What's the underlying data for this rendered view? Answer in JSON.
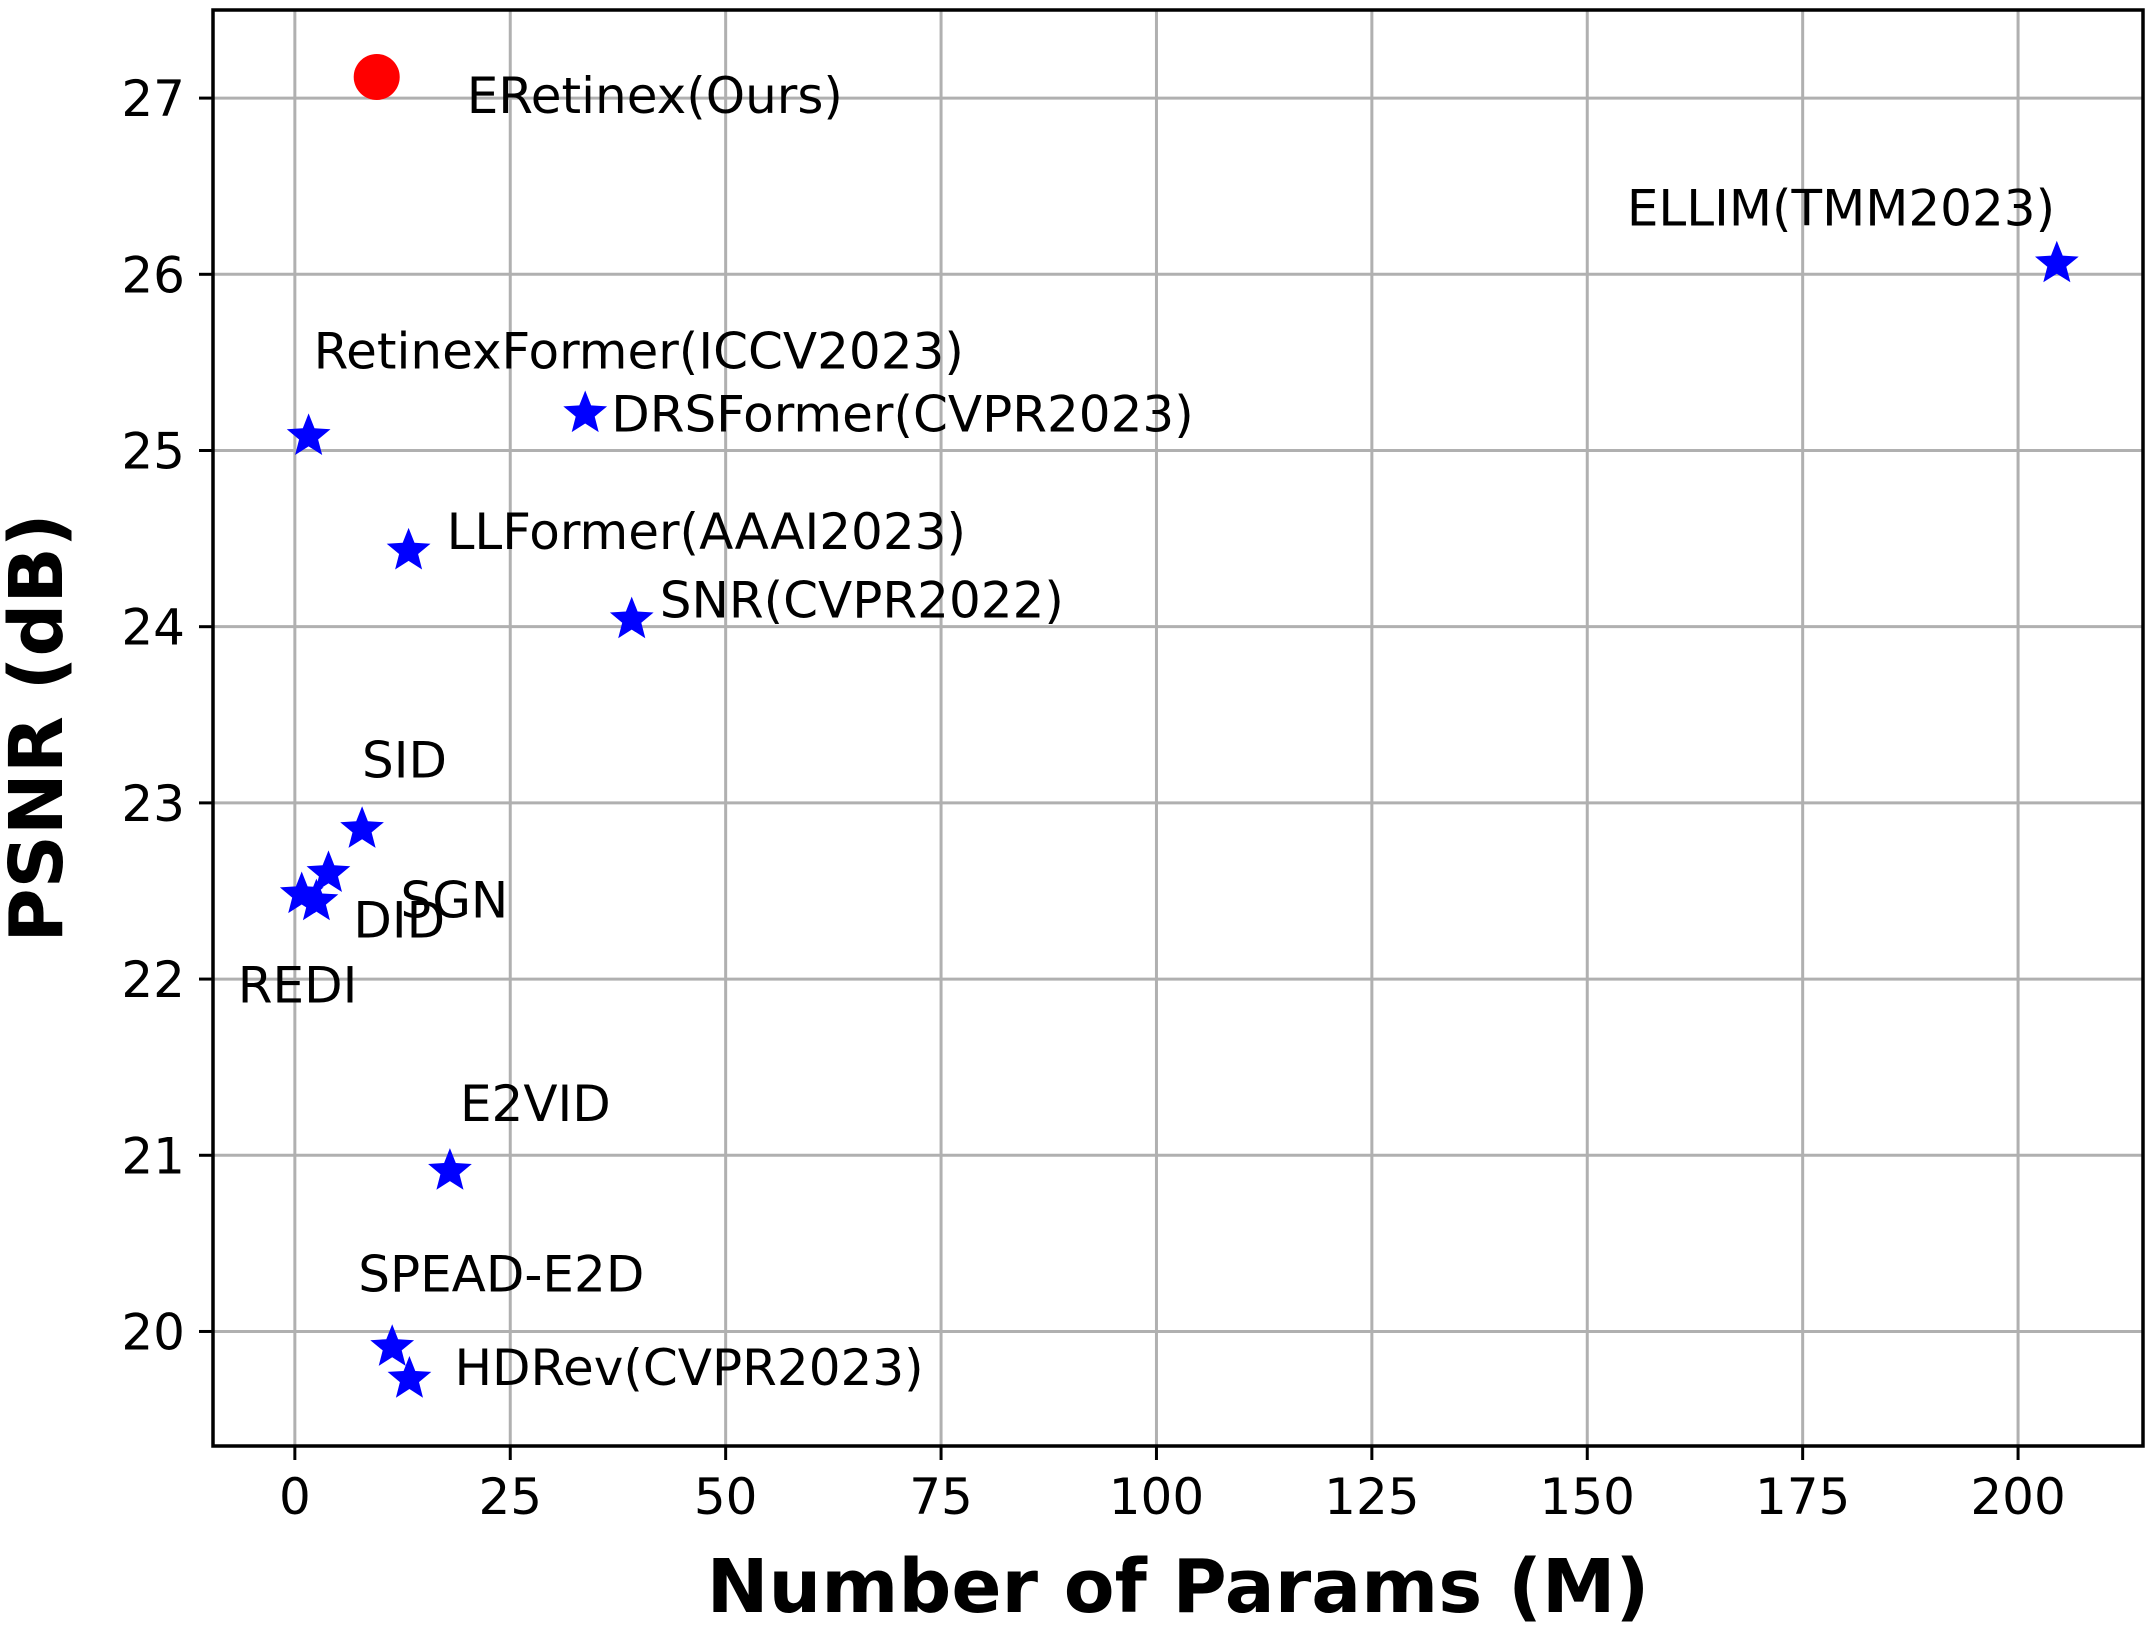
{
  "chart_data": {
    "type": "scatter",
    "title": "",
    "xlabel": "Number of Params (M)",
    "ylabel": "PSNR (dB)",
    "xlim": [
      -9.5,
      214.5
    ],
    "ylim": [
      19.35,
      27.5
    ],
    "xticks": [
      0,
      25,
      50,
      75,
      100,
      125,
      150,
      175,
      200
    ],
    "yticks": [
      20,
      21,
      22,
      23,
      24,
      25,
      26,
      27
    ],
    "grid": true,
    "legend": "none",
    "colors": {
      "ours": "#ff0000",
      "others": "#0000ff",
      "grid": "#b0b0b0"
    },
    "points": [
      {
        "label": "ERetinex(Ours)",
        "x": 9.5,
        "y": 27.12,
        "marker": "circle",
        "color": "#ff0000"
      },
      {
        "label": "ELLIM(TMM2023)",
        "x": 204.5,
        "y": 26.06,
        "marker": "star",
        "color": "#0000ff"
      },
      {
        "label": "RetinexFormer(ICCV2023)",
        "x": 1.6,
        "y": 25.08,
        "marker": "star",
        "color": "#0000ff"
      },
      {
        "label": "DRSFormer(CVPR2023)",
        "x": 33.7,
        "y": 25.21,
        "marker": "star",
        "color": "#0000ff"
      },
      {
        "label": "LLFormer(AAAI2023)",
        "x": 13.2,
        "y": 24.43,
        "marker": "star",
        "color": "#0000ff"
      },
      {
        "label": "SNR(CVPR2022)",
        "x": 39.1,
        "y": 24.04,
        "marker": "star",
        "color": "#0000ff"
      },
      {
        "label": "SID",
        "x": 7.8,
        "y": 22.85,
        "marker": "star",
        "color": "#0000ff"
      },
      {
        "label": "SGN",
        "x": 3.9,
        "y": 22.6,
        "marker": "star",
        "color": "#0000ff"
      },
      {
        "label": "DID",
        "x": 2.5,
        "y": 22.44,
        "marker": "star",
        "color": "#0000ff"
      },
      {
        "label": "REDI",
        "x": 0.8,
        "y": 22.48,
        "marker": "star",
        "color": "#0000ff"
      },
      {
        "label": "E2VID",
        "x": 18.0,
        "y": 20.91,
        "marker": "star",
        "color": "#0000ff"
      },
      {
        "label": "SPEAD-E2D",
        "x": 11.3,
        "y": 19.91,
        "marker": "star",
        "color": "#0000ff"
      },
      {
        "label": "HDRev(CVPR2023)",
        "x": 13.3,
        "y": 19.73,
        "marker": "star",
        "color": "#0000ff"
      }
    ]
  }
}
